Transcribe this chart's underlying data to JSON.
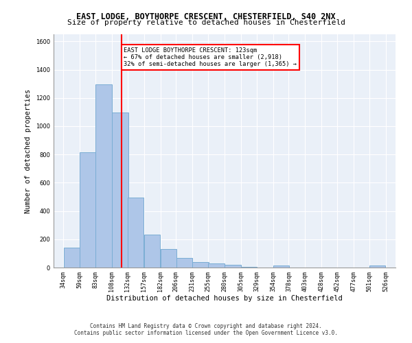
{
  "title1": "EAST LODGE, BOYTHORPE CRESCENT, CHESTERFIELD, S40 2NX",
  "title2": "Size of property relative to detached houses in Chesterfield",
  "xlabel": "Distribution of detached houses by size in Chesterfield",
  "ylabel": "Number of detached properties",
  "bar_color": "#aec6e8",
  "bar_edgecolor": "#7aadd4",
  "vline_x": 123,
  "vline_color": "red",
  "annotation_title": "EAST LODGE BOYTHORPE CRESCENT: 123sqm",
  "annotation_line2": "← 67% of detached houses are smaller (2,918)",
  "annotation_line3": "32% of semi-detached houses are larger (1,365) →",
  "annotation_box_color": "red",
  "annotation_text_color": "black",
  "footer1": "Contains HM Land Registry data © Crown copyright and database right 2024.",
  "footer2": "Contains public sector information licensed under the Open Government Licence v3.0.",
  "ylim": [
    0,
    1650
  ],
  "yticks": [
    0,
    200,
    400,
    600,
    800,
    1000,
    1200,
    1400,
    1600
  ],
  "bin_edges": [
    34,
    59,
    83,
    108,
    132,
    157,
    182,
    206,
    231,
    255,
    280,
    305,
    329,
    354,
    378,
    403,
    428,
    452,
    477,
    501,
    526
  ],
  "bar_heights": [
    140,
    815,
    1295,
    1095,
    495,
    232,
    130,
    68,
    38,
    27,
    17,
    5,
    2,
    14,
    2,
    0,
    0,
    0,
    0,
    14
  ],
  "background_color": "#eaf0f8",
  "plot_bg_color": "#eaf0f8",
  "grid_color": "white"
}
